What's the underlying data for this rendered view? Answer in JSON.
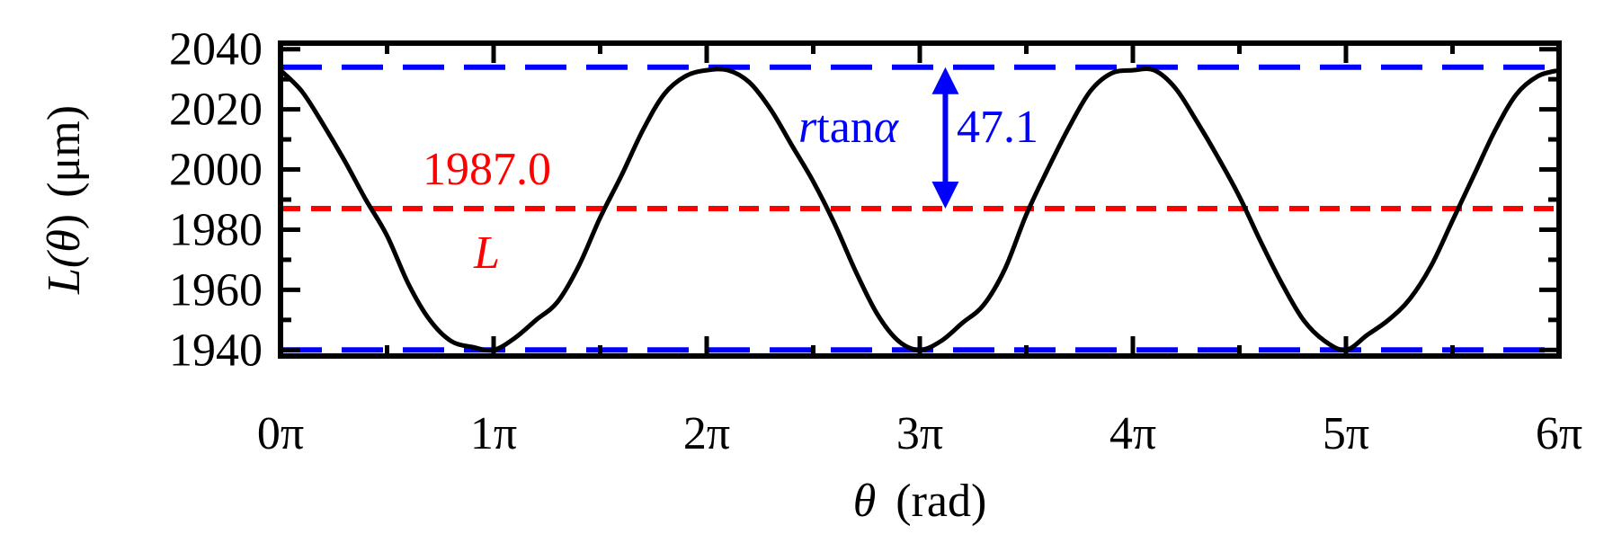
{
  "chart_data": {
    "type": "line",
    "xlabel": {
      "symbol": "θ",
      "unit": "(rad)"
    },
    "ylabel": {
      "symbol_pre": "L(",
      "symbol_var": "θ",
      "symbol_post": ")",
      "unit": "(μm)"
    },
    "x_tick_labels": [
      "0π",
      "1π",
      "2π",
      "3π",
      "4π",
      "5π",
      "6π"
    ],
    "xlim": [
      0,
      6
    ],
    "x_unit": "π rad",
    "y_ticks": [
      1940,
      1960,
      1980,
      2000,
      2020,
      2040
    ],
    "ylim": [
      1938,
      2042
    ],
    "grid": false,
    "series": [
      {
        "color": "#000000",
        "style": "solid",
        "x": [
          0,
          0.1,
          0.2,
          0.3,
          0.4,
          0.5,
          0.6,
          0.7,
          0.8,
          0.9,
          1.0,
          1.1,
          1.2,
          1.3,
          1.4,
          1.5,
          1.6,
          1.7,
          1.8,
          1.9,
          2.0,
          2.1,
          2.2,
          2.3,
          2.4,
          2.5,
          2.6,
          2.7,
          2.8,
          2.9,
          3.0,
          3.1,
          3.2,
          3.3,
          3.4,
          3.5,
          3.6,
          3.7,
          3.8,
          3.9,
          4.0,
          4.1,
          4.2,
          4.3,
          4.4,
          4.5,
          4.6,
          4.7,
          4.8,
          4.9,
          5.0,
          5.1,
          5.2,
          5.3,
          5.4,
          5.5,
          5.6,
          5.7,
          5.8,
          5.9,
          6.0
        ],
        "y": [
          2033,
          2026,
          2015,
          2003,
          1990,
          1978,
          1962,
          1950,
          1943,
          1941,
          1940,
          1944,
          1950,
          1956,
          1968,
          1984,
          1998,
          2013,
          2025,
          2031,
          2033,
          2033,
          2029,
          2020,
          2008,
          1996,
          1982,
          1966,
          1952,
          1943,
          1940,
          1943,
          1949,
          1955,
          1967,
          1985,
          2000,
          2014,
          2026,
          2032,
          2033,
          2033,
          2027,
          2016,
          2004,
          1991,
          1976,
          1962,
          1950,
          1943,
          1940,
          1945,
          1950,
          1957,
          1968,
          1983,
          1998,
          2013,
          2025,
          2031,
          2033
        ]
      }
    ],
    "reference_lines": [
      {
        "y": 2034,
        "color": "#0000ff",
        "style": "long-dash"
      },
      {
        "y": 1940,
        "color": "#0000ff",
        "style": "long-dash"
      },
      {
        "y": 1987,
        "color": "#ff0000",
        "style": "short-dash"
      }
    ],
    "arrow": {
      "x": 3.12,
      "y_from": 1987,
      "y_to": 2034,
      "color": "#0000ff"
    },
    "annotations": {
      "mean_value": "1987.0",
      "mean_symbol": "L",
      "arrow_label_var": "r",
      "arrow_label_func": "tan",
      "arrow_label_angle": "α",
      "arrow_value": "47.1"
    },
    "colors": {
      "curve": "#000000",
      "mean": "#ff0000",
      "bounds": "#0000ff"
    }
  }
}
